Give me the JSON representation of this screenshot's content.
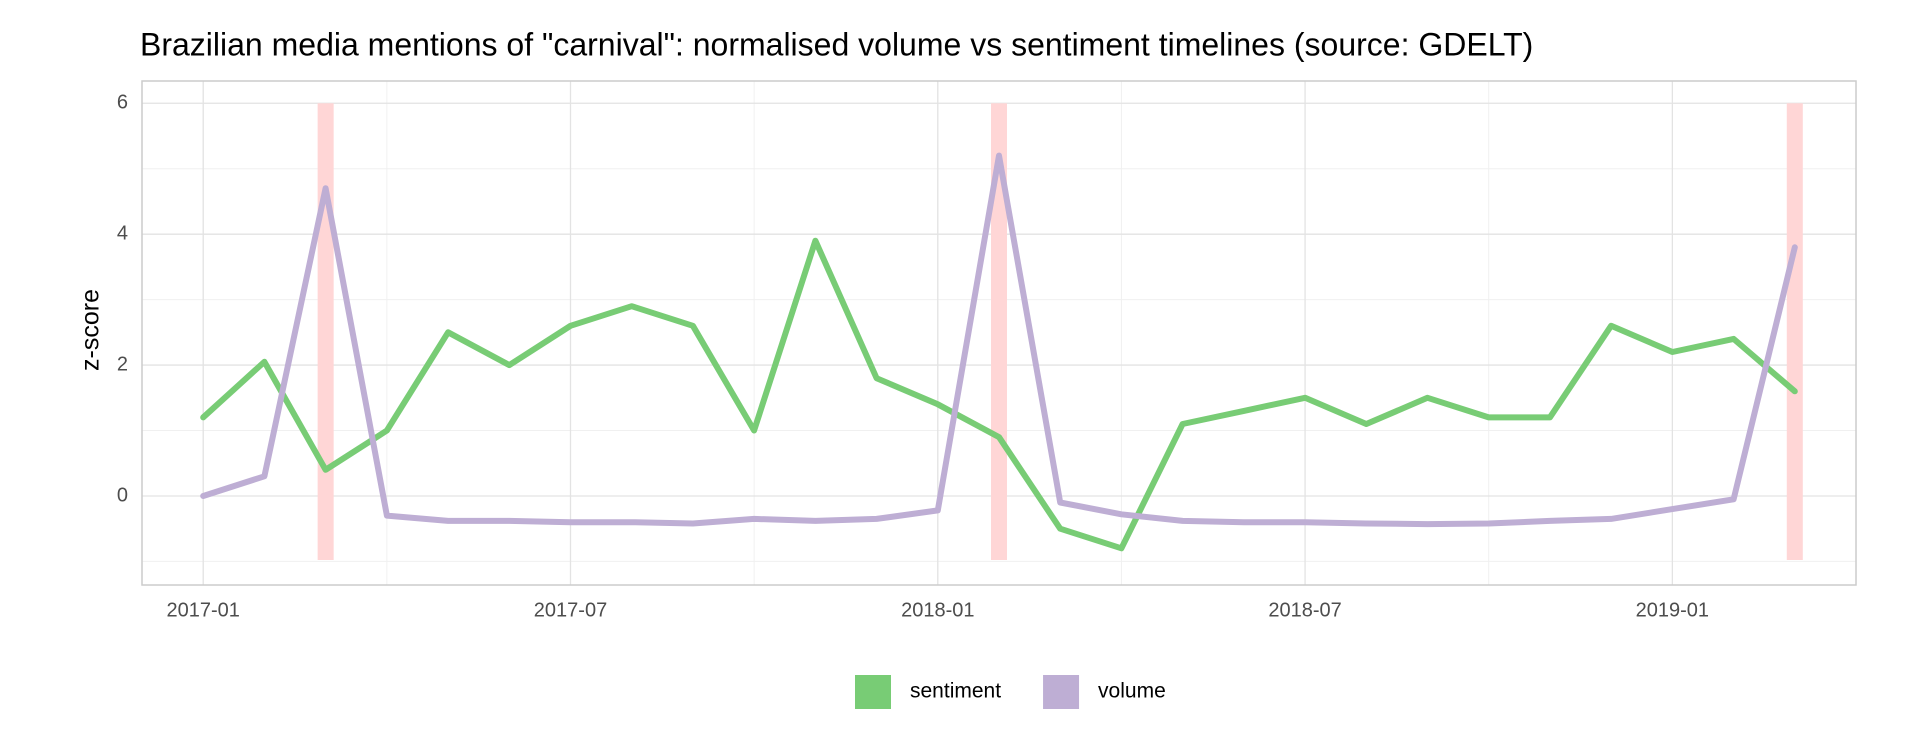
{
  "chart_data": {
    "type": "line",
    "title": "Brazilian media mentions of \"carnival\": normalised volume vs sentiment timelines (source: GDELT)",
    "y_label": "z-score",
    "x": [
      "2017-01",
      "2017-02",
      "2017-03",
      "2017-04",
      "2017-05",
      "2017-06",
      "2017-07",
      "2017-08",
      "2017-09",
      "2017-10",
      "2017-11",
      "2017-12",
      "2018-01",
      "2018-02",
      "2018-03",
      "2018-04",
      "2018-05",
      "2018-06",
      "2018-07",
      "2018-08",
      "2018-09",
      "2018-10",
      "2018-11",
      "2018-12",
      "2019-01",
      "2019-02",
      "2019-03"
    ],
    "series": [
      {
        "name": "sentiment",
        "color": "#78cc75",
        "values": [
          1.2,
          2.05,
          0.4,
          1.0,
          2.5,
          2.0,
          2.6,
          2.9,
          2.6,
          1.0,
          3.9,
          1.8,
          1.4,
          0.9,
          -0.5,
          -0.8,
          1.1,
          1.3,
          1.5,
          1.1,
          1.5,
          1.2,
          1.2,
          2.6,
          2.2,
          2.4,
          1.6
        ]
      },
      {
        "name": "volume",
        "color": "#beaed4",
        "values": [
          0.0,
          0.3,
          4.7,
          -0.3,
          -0.38,
          -0.38,
          -0.4,
          -0.4,
          -0.42,
          -0.35,
          -0.38,
          -0.35,
          -0.22,
          5.2,
          -0.1,
          -0.28,
          -0.38,
          -0.4,
          -0.4,
          -0.42,
          -0.43,
          -0.42,
          -0.38,
          -0.35,
          -0.2,
          -0.05,
          3.8
        ]
      }
    ],
    "highlights": [
      "2017-03",
      "2018-02",
      "2019-03"
    ],
    "highlight_color": "#ffd6d6",
    "xlim": [
      "2016-12",
      "2019-04"
    ],
    "xticks": [
      "2017-01",
      "2017-07",
      "2018-01",
      "2018-07",
      "2019-01"
    ],
    "ylim": [
      -1.36,
      6.34
    ],
    "yticks": [
      0,
      2,
      4,
      6
    ],
    "grid": true,
    "legend": "bottom"
  }
}
